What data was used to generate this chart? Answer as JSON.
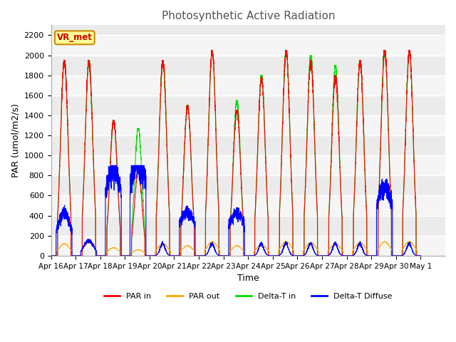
{
  "title": "Photosynthetic Active Radiation",
  "xlabel": "Time",
  "ylabel": "PAR (umol/m2/s)",
  "ylim": [
    0,
    2300
  ],
  "yticks": [
    0,
    200,
    400,
    600,
    800,
    1000,
    1200,
    1400,
    1600,
    1800,
    2000,
    2200
  ],
  "series_colors": {
    "PAR in": "#ff0000",
    "PAR out": "#ffa500",
    "Delta-T in": "#00dd00",
    "Delta-T Diffuse": "#0000ff"
  },
  "legend_labels": [
    "PAR in",
    "PAR out",
    "Delta-T in",
    "Delta-T Diffuse"
  ],
  "annotation_text": "VR_met",
  "annotation_color": "#cc0000",
  "annotation_bg": "#ffff99",
  "background_color": "#ffffff",
  "ax_bg_color": "#ebebeb",
  "grid_color": "#ffffff",
  "num_days": 15,
  "day_labels": [
    "Apr 16",
    "Apr 17",
    "Apr 18",
    "Apr 19",
    "Apr 20",
    "Apr 21",
    "Apr 22",
    "Apr 23",
    "Apr 24",
    "Apr 25",
    "Apr 26",
    "Apr 27",
    "Apr 28",
    "Apr 29",
    "Apr 30",
    "May 1"
  ],
  "par_in_peaks": [
    1950,
    1950,
    1350,
    850,
    1950,
    1500,
    2050,
    1450,
    1780,
    2050,
    1950,
    1800,
    1950,
    2050,
    2050
  ],
  "par_out_peaks": [
    120,
    130,
    80,
    60,
    120,
    100,
    140,
    100,
    110,
    140,
    130,
    120,
    130,
    140,
    140
  ],
  "delta_t_in_peaks": [
    1950,
    1950,
    1350,
    1270,
    1950,
    1500,
    2050,
    1550,
    1800,
    2050,
    2000,
    1900,
    1950,
    2050,
    2050
  ],
  "diffuse_peaks": [
    420,
    150,
    850,
    900,
    120,
    420,
    120,
    420,
    120,
    120,
    120,
    120,
    120,
    680,
    120
  ],
  "diffuse_width": [
    1.5,
    1.0,
    2.0,
    2.5,
    0.5,
    2.0,
    0.5,
    2.0,
    0.5,
    0.5,
    0.5,
    0.5,
    0.5,
    2.0,
    0.5
  ]
}
